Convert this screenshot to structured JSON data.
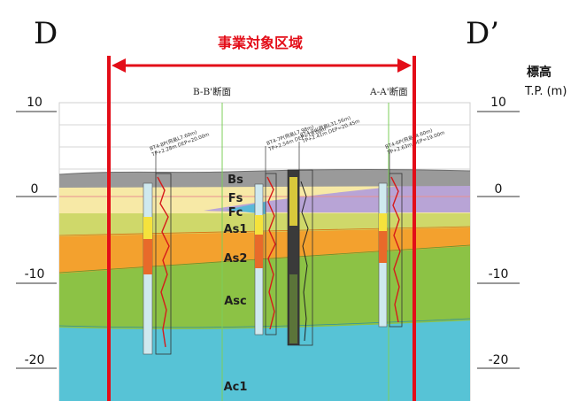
{
  "section": {
    "left_label": "D",
    "right_label": "D’",
    "project_area_label": "事業対象区域",
    "elevation_title": "標高",
    "elevation_unit": "T.P. (m)",
    "ticks": [
      "10",
      "0",
      "-10",
      "-20"
    ],
    "cross_sections": [
      "B-B'断面",
      "A-A'断面"
    ]
  },
  "layers": [
    {
      "name": "Bs",
      "color": "#9a9a9a"
    },
    {
      "name": "Fs",
      "color": "#f7e9a6"
    },
    {
      "name": "Fc",
      "color": "#b8a4d6"
    },
    {
      "name": "As1",
      "color": "#cfd86a"
    },
    {
      "name": "As2",
      "color": "#f3a12e"
    },
    {
      "name": "Asc",
      "color": "#8cc245"
    },
    {
      "name": "Ac1",
      "color": "#57c3d6"
    }
  ],
  "boreholes": [
    {
      "label": "BT4-8P(飛島L7.60m)",
      "sub": "TP+2.28m DEP=20.00m"
    },
    {
      "label": "BT4-7P(飛島L7.98m)",
      "sub": "TP+2.54m DEP=19.00m"
    },
    {
      "label": "BT4-9d(飛島L31.56m)",
      "sub": "TP+2.41m DEP=20.45m"
    },
    {
      "label": "BT4-6P(飛島L4.60m)",
      "sub": "TP+2.63m DEP=19.00m"
    }
  ],
  "colors": {
    "accent_red": "#e30d18",
    "grid": "#bfbfbf",
    "section_line": "#7ccf5a"
  }
}
